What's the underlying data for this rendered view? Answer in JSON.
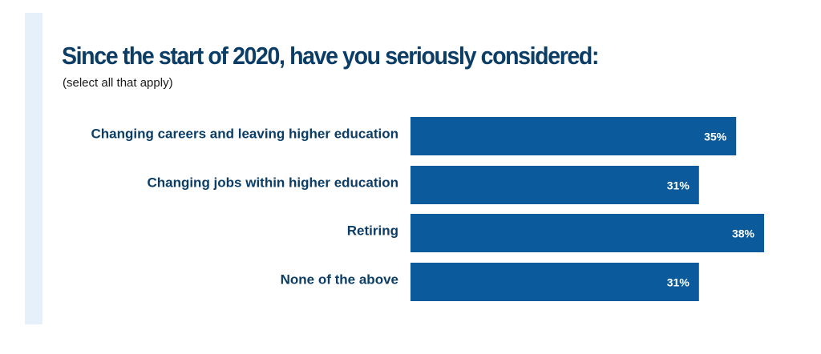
{
  "chart_data": {
    "type": "bar",
    "orientation": "horizontal",
    "title": "Since the start of 2020, have you seriously considered:",
    "subtitle": "(select all that apply)",
    "categories": [
      "Changing careers and leaving higher education",
      "Changing jobs within higher education",
      "Retiring",
      "None of the above"
    ],
    "values": [
      35,
      31,
      38,
      31
    ],
    "value_labels": [
      "35%",
      "31%",
      "38%",
      "31%"
    ],
    "unit": "%",
    "xlim": [
      0,
      38
    ],
    "grid": false,
    "legend": "none"
  },
  "colors": {
    "bar": "#0a5a9c",
    "title": "#0b3d66",
    "label": "#0b3d66",
    "accent_stripe": "#e6f0fb"
  }
}
